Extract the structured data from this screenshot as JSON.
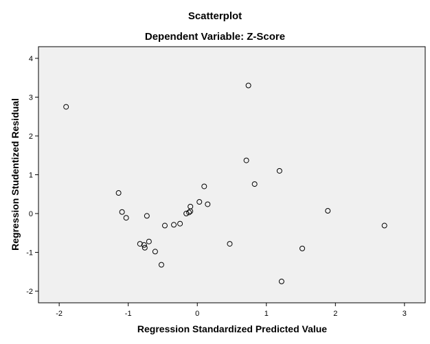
{
  "chart_data": {
    "type": "scatter",
    "title": "Scatterplot",
    "subtitle": "Dependent Variable: Z-Score",
    "xlabel": "Regression Standardized Predicted Value",
    "ylabel": "Regression Studentized Residual",
    "xlim": [
      -2.3,
      3.3
    ],
    "ylim": [
      -2.3,
      4.3
    ],
    "x_ticks": [
      -2,
      -1,
      0,
      1,
      2,
      3
    ],
    "y_ticks": [
      -2,
      -1,
      0,
      1,
      2,
      3,
      4
    ],
    "x_tick_labels": [
      "-2",
      "-1",
      "0",
      "1",
      "2",
      "3"
    ],
    "y_tick_labels": [
      "-2",
      "-1",
      "0",
      "1",
      "2",
      "3",
      "4"
    ],
    "grid": false,
    "colors": {
      "plot_background": "#f0f0f0",
      "marker_stroke": "#000000",
      "axis": "#000000"
    },
    "points": [
      {
        "x": -1.9,
        "y": 2.75
      },
      {
        "x": 0.74,
        "y": 3.3
      },
      {
        "x": 0.71,
        "y": 1.37
      },
      {
        "x": 1.19,
        "y": 1.1
      },
      {
        "x": 0.83,
        "y": 0.76
      },
      {
        "x": 0.1,
        "y": 0.7
      },
      {
        "x": -1.14,
        "y": 0.53
      },
      {
        "x": -1.09,
        "y": 0.04
      },
      {
        "x": -1.03,
        "y": -0.11
      },
      {
        "x": -0.73,
        "y": -0.06
      },
      {
        "x": 0.03,
        "y": 0.3
      },
      {
        "x": 0.15,
        "y": 0.24
      },
      {
        "x": -0.1,
        "y": 0.18
      },
      {
        "x": -0.1,
        "y": 0.06
      },
      {
        "x": -0.12,
        "y": 0.03
      },
      {
        "x": -0.16,
        "y": 0.0
      },
      {
        "x": -0.25,
        "y": -0.26
      },
      {
        "x": -0.34,
        "y": -0.29
      },
      {
        "x": -0.47,
        "y": -0.31
      },
      {
        "x": -0.7,
        "y": -0.72
      },
      {
        "x": -0.83,
        "y": -0.78
      },
      {
        "x": -0.77,
        "y": -0.81
      },
      {
        "x": -0.76,
        "y": -0.88
      },
      {
        "x": -0.61,
        "y": -0.98
      },
      {
        "x": -0.52,
        "y": -1.32
      },
      {
        "x": 0.47,
        "y": -0.78
      },
      {
        "x": 1.52,
        "y": -0.9
      },
      {
        "x": 1.22,
        "y": -1.75
      },
      {
        "x": 1.89,
        "y": 0.07
      },
      {
        "x": 2.71,
        "y": -0.31
      }
    ]
  }
}
